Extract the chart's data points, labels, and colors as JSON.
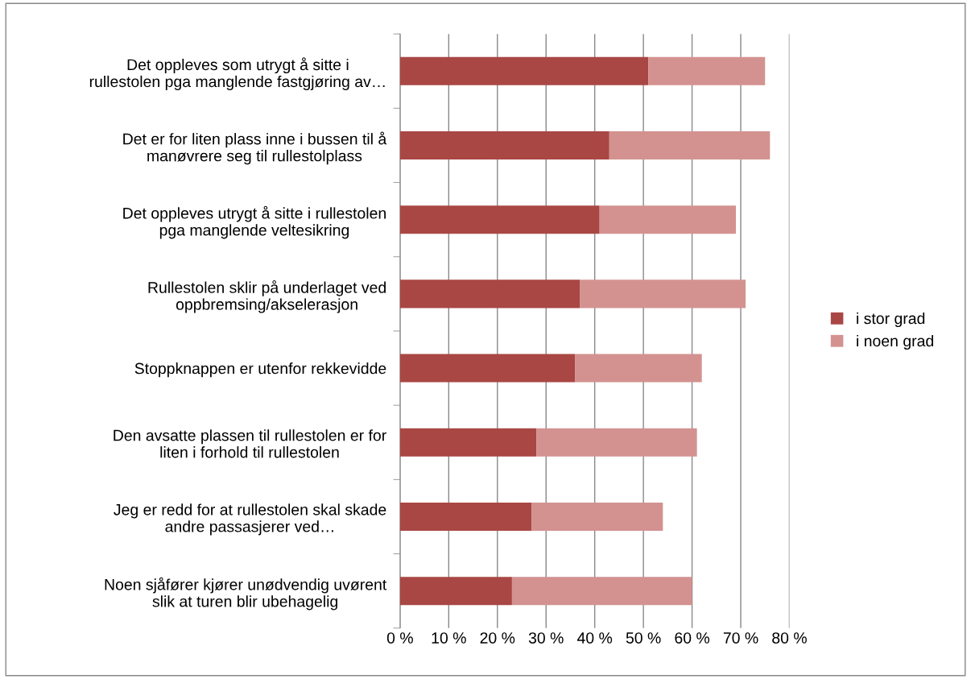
{
  "chart_data": {
    "type": "bar",
    "orientation": "horizontal",
    "stacked": true,
    "categories": [
      "Det oppleves som utrygt å sitte i\nrullestolen pga manglende fastgjøring av…",
      "Det er for liten plass inne i bussen til å\nmanøvrere seg til rullestolplass",
      "Det oppleves utrygt å sitte i rullestolen\npga manglende veltesikring",
      "Rullestolen sklir på underlaget ved\noppbremsing/akselerasjon",
      "Stoppknappen er utenfor rekkevidde",
      "Den avsatte plassen til rullestolen er for\nliten i forhold til rullestolen",
      "Jeg er redd for at rullestolen skal skade\nandre passasjerer ved…",
      "Noen sjåfører kjører unødvendig uvørent\nslik at turen blir ubehagelig"
    ],
    "series": [
      {
        "name": "i stor grad",
        "color": "#a94744",
        "values": [
          51,
          43,
          41,
          37,
          36,
          28,
          27,
          23
        ]
      },
      {
        "name": "i noen grad",
        "color": "#d39290",
        "values": [
          24,
          33,
          28,
          34,
          26,
          33,
          27,
          37
        ]
      }
    ],
    "xlim": [
      0,
      80
    ],
    "xticks": [
      {
        "value": 0,
        "label": "0 %"
      },
      {
        "value": 10,
        "label": "10 %"
      },
      {
        "value": 20,
        "label": "20 %"
      },
      {
        "value": 30,
        "label": "30 %"
      },
      {
        "value": 40,
        "label": "40 %"
      },
      {
        "value": 50,
        "label": "50 %"
      },
      {
        "value": 60,
        "label": "60 %"
      },
      {
        "value": 70,
        "label": "70 %"
      },
      {
        "value": 80,
        "label": "80 %"
      }
    ],
    "grid": "x",
    "legend": "right"
  }
}
